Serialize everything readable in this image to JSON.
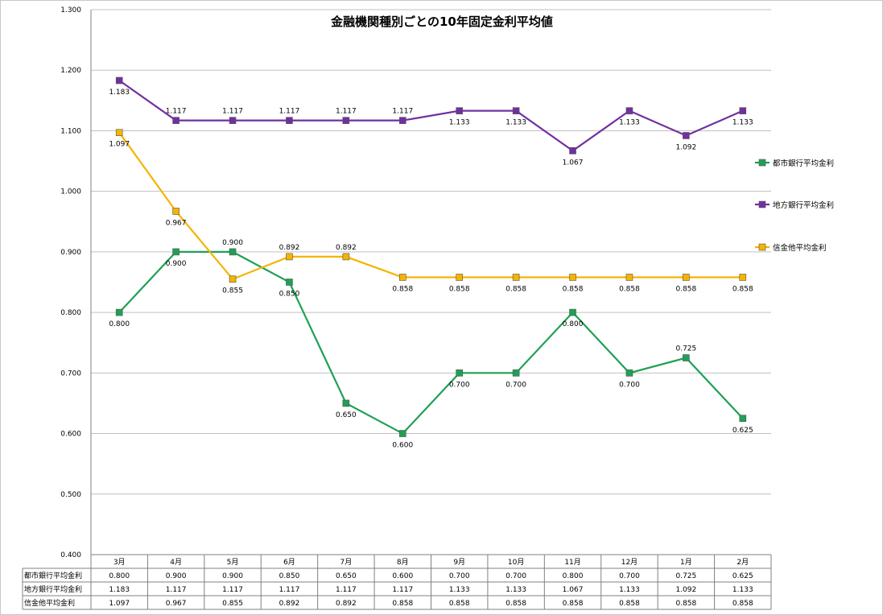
{
  "chart_data": {
    "type": "line",
    "title": "金融機関種別ごとの10年固定金利平均値",
    "categories": [
      "3月",
      "4月",
      "5月",
      "6月",
      "7月",
      "8月",
      "9月",
      "10月",
      "11月",
      "12月",
      "1月",
      "2月"
    ],
    "ylim": [
      0.4,
      1.3
    ],
    "yticks": [
      "0.400",
      "0.500",
      "0.600",
      "0.700",
      "0.800",
      "0.900",
      "1.000",
      "1.100",
      "1.200",
      "1.300"
    ],
    "grid": true,
    "legend_position": "right",
    "series": [
      {
        "name": "都市銀行平均金利",
        "color": "#1fa055",
        "marker": "square",
        "values": [
          0.8,
          0.9,
          0.9,
          0.85,
          0.65,
          0.6,
          0.7,
          0.7,
          0.8,
          0.7,
          0.725,
          0.625
        ],
        "labels": [
          "0.800",
          "0.900",
          "0.900",
          "0.850",
          "0.650",
          "0.600",
          "0.700",
          "0.700",
          "0.800",
          "0.700",
          "0.725",
          "0.625"
        ]
      },
      {
        "name": "地方銀行平均金利",
        "color": "#7030a0",
        "marker": "square",
        "values": [
          1.183,
          1.117,
          1.117,
          1.117,
          1.117,
          1.117,
          1.133,
          1.133,
          1.067,
          1.133,
          1.092,
          1.133
        ],
        "labels": [
          "1.183",
          "1.117",
          "1.117",
          "1.117",
          "1.117",
          "1.117",
          "1.133",
          "1.133",
          "1.067",
          "1.133",
          "1.092",
          "1.133"
        ]
      },
      {
        "name": "信金他平均金利",
        "color": "#f5b400",
        "marker": "square",
        "values": [
          1.097,
          0.967,
          0.855,
          0.892,
          0.892,
          0.858,
          0.858,
          0.858,
          0.858,
          0.858,
          0.858,
          0.858
        ],
        "labels": [
          "1.097",
          "0.967",
          "0.855",
          "0.892",
          "0.892",
          "0.858",
          "0.858",
          "0.858",
          "0.858",
          "0.858",
          "0.858",
          "0.858"
        ]
      }
    ]
  }
}
